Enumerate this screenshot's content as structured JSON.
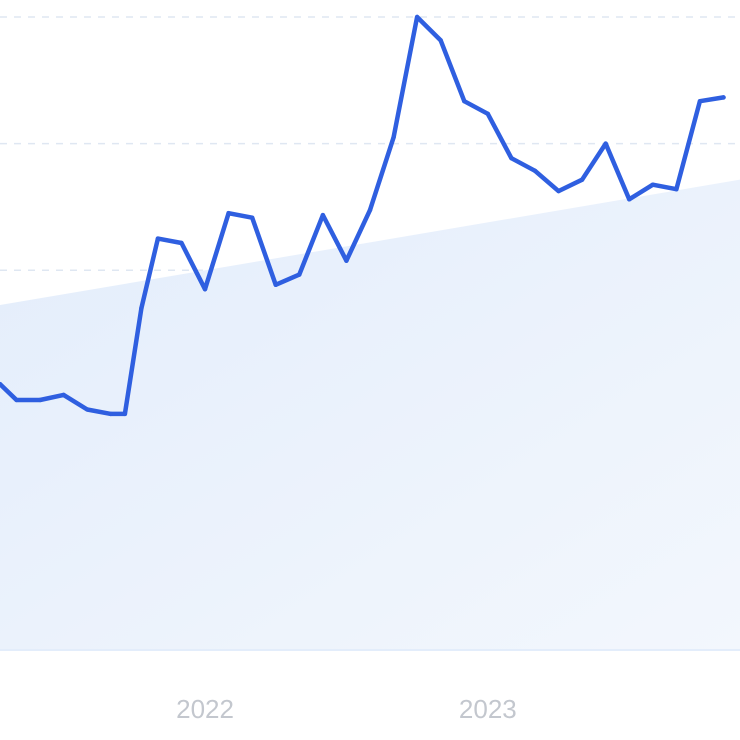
{
  "chart_data": {
    "type": "line",
    "title": "",
    "xlabel": "",
    "ylabel": "",
    "grid": true,
    "x_tick_labels": [
      {
        "label": "2022",
        "x": 12
      },
      {
        "label": "2023",
        "x": 24
      }
    ],
    "xlim": [
      3.3,
      34.7
    ],
    "ylim": [
      0,
      100
    ],
    "y_grid_values": [
      20,
      40,
      60,
      80,
      100
    ],
    "series": [
      {
        "values": [
          {
            "x": 3.3,
            "y": 42
          },
          {
            "x": 4.0,
            "y": 39.5
          },
          {
            "x": 5.0,
            "y": 39.5
          },
          {
            "x": 6.0,
            "y": 40.3
          },
          {
            "x": 7.0,
            "y": 38
          },
          {
            "x": 8.0,
            "y": 37.3
          },
          {
            "x": 8.6,
            "y": 37.3
          },
          {
            "x": 9.3,
            "y": 54
          },
          {
            "x": 10.0,
            "y": 65
          },
          {
            "x": 11.0,
            "y": 64.3
          },
          {
            "x": 12.0,
            "y": 57
          },
          {
            "x": 13.0,
            "y": 69
          },
          {
            "x": 14.0,
            "y": 68.3
          },
          {
            "x": 15.0,
            "y": 57.7
          },
          {
            "x": 16.0,
            "y": 59.3
          },
          {
            "x": 17.0,
            "y": 68.7
          },
          {
            "x": 18.0,
            "y": 61.5
          },
          {
            "x": 19.0,
            "y": 69.5
          },
          {
            "x": 20.0,
            "y": 81
          },
          {
            "x": 21.0,
            "y": 100
          },
          {
            "x": 22.0,
            "y": 96.3
          },
          {
            "x": 23.0,
            "y": 86.7
          },
          {
            "x": 24.0,
            "y": 84.7
          },
          {
            "x": 25.0,
            "y": 77.7
          },
          {
            "x": 26.0,
            "y": 75.7
          },
          {
            "x": 27.0,
            "y": 72.5
          },
          {
            "x": 28.0,
            "y": 74.3
          },
          {
            "x": 29.0,
            "y": 80
          },
          {
            "x": 30.0,
            "y": 71.2
          },
          {
            "x": 31.0,
            "y": 73.5
          },
          {
            "x": 32.0,
            "y": 72.8
          },
          {
            "x": 33.0,
            "y": 86.7
          },
          {
            "x": 34.0,
            "y": 87.3
          }
        ]
      },
      {
        "style": "area",
        "values": [
          {
            "x": 3.3,
            "y": 54.5
          },
          {
            "x": 34.7,
            "y": 74.3
          }
        ]
      }
    ]
  },
  "colors": {
    "line": "#2f5fe0",
    "area_fill_top": "#e3edfb",
    "area_fill_bottom": "#f3f7fd",
    "grid": "#dfe7f2",
    "axis_line": "#e3edfb",
    "tick_text": "#c3c7ce"
  }
}
